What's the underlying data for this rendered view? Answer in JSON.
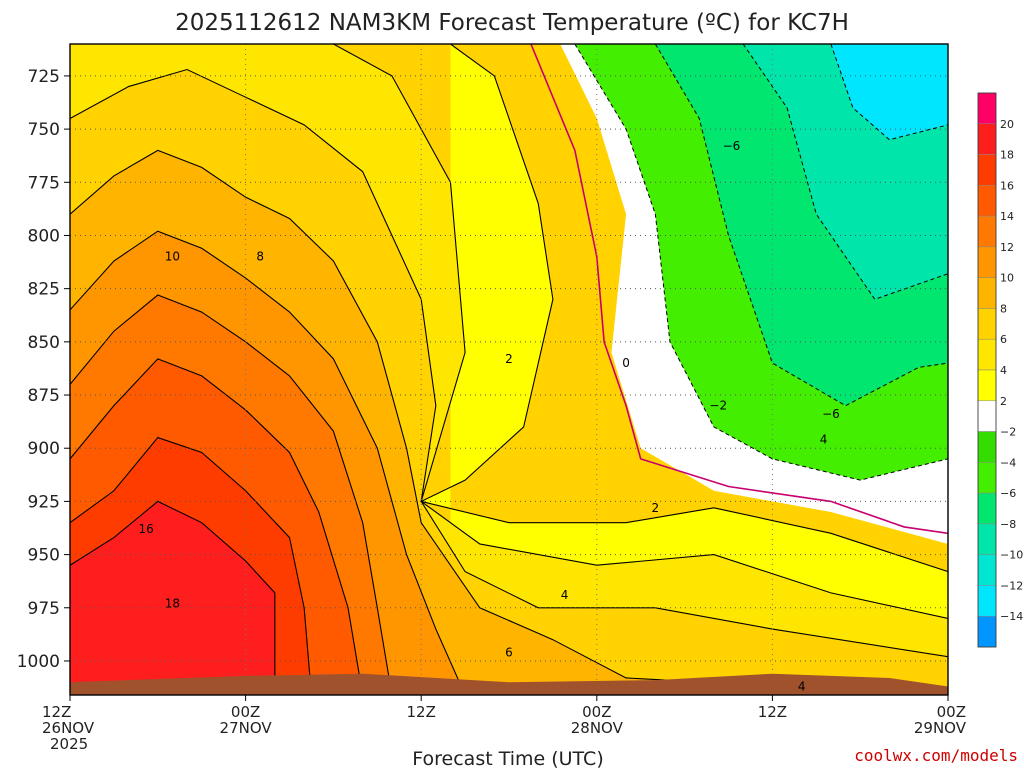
{
  "chart_data": {
    "type": "heatmap",
    "title": "2025112612 NAM3KM Forecast Temperature (ºC) for KC7H",
    "xlabel": "Forecast Time (UTC)",
    "ylabel": "",
    "x_ticks": [
      {
        "hour": 0,
        "time": "12Z",
        "date": "26NOV",
        "year": "2025"
      },
      {
        "hour": 12,
        "time": "00Z",
        "date": "27NOV",
        "year": ""
      },
      {
        "hour": 24,
        "time": "12Z",
        "date": "",
        "year": ""
      },
      {
        "hour": 36,
        "time": "00Z",
        "date": "28NOV",
        "year": ""
      },
      {
        "hour": 48,
        "time": "12Z",
        "date": "",
        "year": ""
      },
      {
        "hour": 60,
        "time": "00Z",
        "date": "29NOV",
        "year": ""
      }
    ],
    "xlim": [
      0,
      60
    ],
    "y_ticks": [
      725,
      750,
      775,
      800,
      825,
      850,
      875,
      900,
      925,
      950,
      975,
      1000
    ],
    "ylim": [
      710,
      1016
    ],
    "colorbar": [
      {
        "label": "20",
        "color": "#ff0066"
      },
      {
        "label": "18",
        "color": "#ff1e1e"
      },
      {
        "label": "16",
        "color": "#ff3c00"
      },
      {
        "label": "14",
        "color": "#ff5a00"
      },
      {
        "label": "12",
        "color": "#ff7800"
      },
      {
        "label": "10",
        "color": "#ff9600"
      },
      {
        "label": "8",
        "color": "#ffb400"
      },
      {
        "label": "6",
        "color": "#ffd200"
      },
      {
        "label": "4",
        "color": "#ffe600"
      },
      {
        "label": "2",
        "color": "#ffff00"
      },
      {
        "label": "−2",
        "color": "#ffffff"
      },
      {
        "label": "−4",
        "color": "#33dd00"
      },
      {
        "label": "−6",
        "color": "#44ee00"
      },
      {
        "label": "−8",
        "color": "#00e66e"
      },
      {
        "label": "−10",
        "color": "#00e6aa"
      },
      {
        "label": "−12",
        "color": "#00e6d2"
      },
      {
        "label": "−14",
        "color": "#00e6ff"
      },
      {
        "label": "",
        "color": "#0096ff"
      }
    ],
    "contour_labels": [
      {
        "text": "10",
        "hour": 7.0,
        "pressure": 810
      },
      {
        "text": "8",
        "hour": 13.0,
        "pressure": 810
      },
      {
        "text": "16",
        "hour": 5.2,
        "pressure": 938
      },
      {
        "text": "18",
        "hour": 7.0,
        "pressure": 973
      },
      {
        "text": "2",
        "hour": 30.0,
        "pressure": 858
      },
      {
        "text": "0",
        "hour": 38.0,
        "pressure": 860
      },
      {
        "text": "−2",
        "hour": 44.3,
        "pressure": 880
      },
      {
        "text": "−6",
        "hour": 45.2,
        "pressure": 758
      },
      {
        "text": "−6",
        "hour": 52.0,
        "pressure": 884
      },
      {
        "text": "4",
        "hour": 51.5,
        "pressure": 896
      },
      {
        "text": "2",
        "hour": 40.0,
        "pressure": 928
      },
      {
        "text": "4",
        "hour": 33.8,
        "pressure": 969
      },
      {
        "text": "6",
        "hour": 30.0,
        "pressure": 996
      },
      {
        "text": "4",
        "hour": 50.0,
        "pressure": 1012
      }
    ],
    "fill_bands": [
      {
        "temp_min": 18,
        "color": "#ff1e1e",
        "boundary": [
          [
            0,
            955
          ],
          [
            3,
            942
          ],
          [
            6,
            925
          ],
          [
            9,
            935
          ],
          [
            12,
            953
          ],
          [
            14,
            968
          ],
          [
            14,
            1016
          ]
        ]
      },
      {
        "temp_min": 16,
        "color": "#ff3c00",
        "boundary": [
          [
            0,
            935
          ],
          [
            3,
            920
          ],
          [
            6,
            895
          ],
          [
            9,
            902
          ],
          [
            12,
            920
          ],
          [
            15,
            942
          ],
          [
            16,
            975
          ],
          [
            16.5,
            1016
          ]
        ]
      },
      {
        "temp_min": 14,
        "color": "#ff5a00",
        "boundary": [
          [
            0,
            905
          ],
          [
            3,
            880
          ],
          [
            6,
            858
          ],
          [
            9,
            866
          ],
          [
            12,
            882
          ],
          [
            15,
            902
          ],
          [
            17,
            930
          ],
          [
            19,
            975
          ],
          [
            20,
            1016
          ]
        ]
      },
      {
        "temp_min": 12,
        "color": "#ff7800",
        "boundary": [
          [
            0,
            870
          ],
          [
            3,
            845
          ],
          [
            6,
            828
          ],
          [
            9,
            836
          ],
          [
            12,
            850
          ],
          [
            15,
            866
          ],
          [
            18,
            892
          ],
          [
            20,
            935
          ],
          [
            21,
            975
          ],
          [
            22,
            1016
          ]
        ]
      },
      {
        "temp_min": 10,
        "color": "#ff9600",
        "boundary": [
          [
            0,
            835
          ],
          [
            3,
            812
          ],
          [
            6,
            798
          ],
          [
            9,
            806
          ],
          [
            12,
            820
          ],
          [
            15,
            836
          ],
          [
            18,
            858
          ],
          [
            21,
            900
          ],
          [
            23,
            950
          ],
          [
            25,
            985
          ],
          [
            27,
            1016
          ]
        ]
      },
      {
        "temp_min": 8,
        "color": "#ffb400",
        "boundary": [
          [
            0,
            790
          ],
          [
            3,
            772
          ],
          [
            6,
            760
          ],
          [
            9,
            768
          ],
          [
            12,
            782
          ],
          [
            15,
            792
          ],
          [
            18,
            812
          ],
          [
            21,
            850
          ],
          [
            23,
            900
          ],
          [
            24,
            935
          ],
          [
            28,
            975
          ],
          [
            33,
            990
          ],
          [
            38,
            1008
          ],
          [
            60,
            1016
          ]
        ]
      },
      {
        "temp_min": 6,
        "color": "#ffd200",
        "boundary": [
          [
            0,
            745
          ],
          [
            4,
            730
          ],
          [
            8,
            722
          ],
          [
            12,
            735
          ],
          [
            16,
            748
          ],
          [
            20,
            770
          ],
          [
            24,
            830
          ],
          [
            25,
            880
          ],
          [
            24,
            925
          ],
          [
            27,
            958
          ],
          [
            32,
            975
          ],
          [
            40,
            975
          ],
          [
            48,
            985
          ],
          [
            60,
            998
          ]
        ]
      },
      {
        "temp_min": 4,
        "color": "#ffe600",
        "boundary": [
          [
            0,
            710
          ],
          [
            18,
            710
          ],
          [
            22,
            725
          ],
          [
            26,
            775
          ],
          [
            27,
            855
          ],
          [
            24,
            925
          ],
          [
            28,
            945
          ],
          [
            36,
            955
          ],
          [
            44,
            950
          ],
          [
            52,
            968
          ],
          [
            60,
            980
          ]
        ]
      },
      {
        "temp_min": 2,
        "color": "#ffff00",
        "boundary": [
          [
            26,
            710
          ],
          [
            29,
            725
          ],
          [
            32,
            785
          ],
          [
            33,
            830
          ],
          [
            31,
            890
          ],
          [
            27,
            915
          ],
          [
            24,
            925
          ],
          [
            30,
            935
          ],
          [
            38,
            935
          ],
          [
            44,
            928
          ],
          [
            52,
            940
          ],
          [
            60,
            958
          ]
        ]
      }
    ],
    "cold_regions": [
      {
        "temp_max": 0,
        "color": "#ffffff",
        "boundary": [
          [
            33.5,
            710
          ],
          [
            36,
            745
          ],
          [
            38,
            790
          ],
          [
            37,
            855
          ],
          [
            39,
            900
          ],
          [
            44,
            920
          ],
          [
            52,
            930
          ],
          [
            60,
            945
          ],
          [
            60,
            710
          ]
        ]
      },
      {
        "temp_max": -2,
        "color": "#44ee00",
        "boundary": [
          [
            34.5,
            710
          ],
          [
            38,
            750
          ],
          [
            40,
            790
          ],
          [
            41,
            850
          ],
          [
            44,
            890
          ],
          [
            48,
            905
          ],
          [
            54,
            915
          ],
          [
            60,
            905
          ],
          [
            60,
            710
          ]
        ]
      },
      {
        "temp_max": -4,
        "color": "#00e66e",
        "boundary": [
          [
            40,
            710
          ],
          [
            43,
            745
          ],
          [
            45,
            800
          ],
          [
            48,
            860
          ],
          [
            53,
            880
          ],
          [
            58,
            862
          ],
          [
            60,
            860
          ],
          [
            60,
            710
          ]
        ]
      },
      {
        "temp_max": -6,
        "color": "#00e6aa",
        "boundary": [
          [
            46,
            710
          ],
          [
            49,
            740
          ],
          [
            51,
            790
          ],
          [
            55,
            830
          ],
          [
            60,
            818
          ],
          [
            60,
            710
          ]
        ]
      },
      {
        "temp_max": -10,
        "color": "#00e6ff",
        "boundary": [
          [
            52,
            710
          ],
          [
            53.5,
            740
          ],
          [
            56,
            755
          ],
          [
            60,
            748
          ],
          [
            60,
            710
          ]
        ]
      }
    ],
    "zero_line": [
      [
        31.5,
        710
      ],
      [
        34.5,
        760
      ],
      [
        36,
        810
      ],
      [
        36.5,
        850
      ],
      [
        38,
        880
      ],
      [
        39,
        905
      ],
      [
        45,
        918
      ],
      [
        52,
        925
      ],
      [
        57,
        937
      ],
      [
        60,
        940
      ]
    ],
    "terrain_color": "#a0522d",
    "surface_pressure": [
      [
        0,
        1010
      ],
      [
        12,
        1007
      ],
      [
        20,
        1006
      ],
      [
        30,
        1010
      ],
      [
        40,
        1009
      ],
      [
        48,
        1006
      ],
      [
        56,
        1008
      ],
      [
        60,
        1012
      ]
    ]
  },
  "credit": "coolwx.com/models",
  "colors": {
    "grid": "#999999",
    "axis": "#000000"
  }
}
